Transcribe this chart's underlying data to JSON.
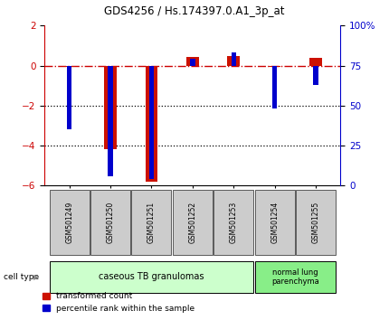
{
  "title": "GDS4256 / Hs.174397.0.A1_3p_at",
  "samples": [
    "GSM501249",
    "GSM501250",
    "GSM501251",
    "GSM501252",
    "GSM501253",
    "GSM501254",
    "GSM501255"
  ],
  "transformed_count": [
    -0.05,
    -4.2,
    -5.8,
    0.45,
    0.5,
    -0.05,
    0.4
  ],
  "percentile_rank": [
    35,
    6,
    4,
    79,
    83,
    48,
    63
  ],
  "ylim_left": [
    -6,
    2
  ],
  "ylim_right": [
    0,
    100
  ],
  "yticks_left": [
    -6,
    -4,
    -2,
    0,
    2
  ],
  "yticks_right": [
    0,
    25,
    50,
    75,
    100
  ],
  "ytick_labels_right": [
    "0",
    "25",
    "50",
    "75",
    "100%"
  ],
  "bar_color_red": "#cc1100",
  "bar_color_blue": "#0000cc",
  "hline_color": "#cc0000",
  "dotted_color": "#000000",
  "group1_label": "caseous TB granulomas",
  "group2_label": "normal lung\nparenchyma",
  "group1_indices": [
    0,
    1,
    2,
    3,
    4
  ],
  "group2_indices": [
    5,
    6
  ],
  "group1_color": "#ccffcc",
  "group2_color": "#88ee88",
  "cell_type_label": "cell type",
  "legend_red": "transformed count",
  "legend_blue": "percentile rank within the sample",
  "red_bar_width": 0.3,
  "blue_bar_width": 0.12
}
